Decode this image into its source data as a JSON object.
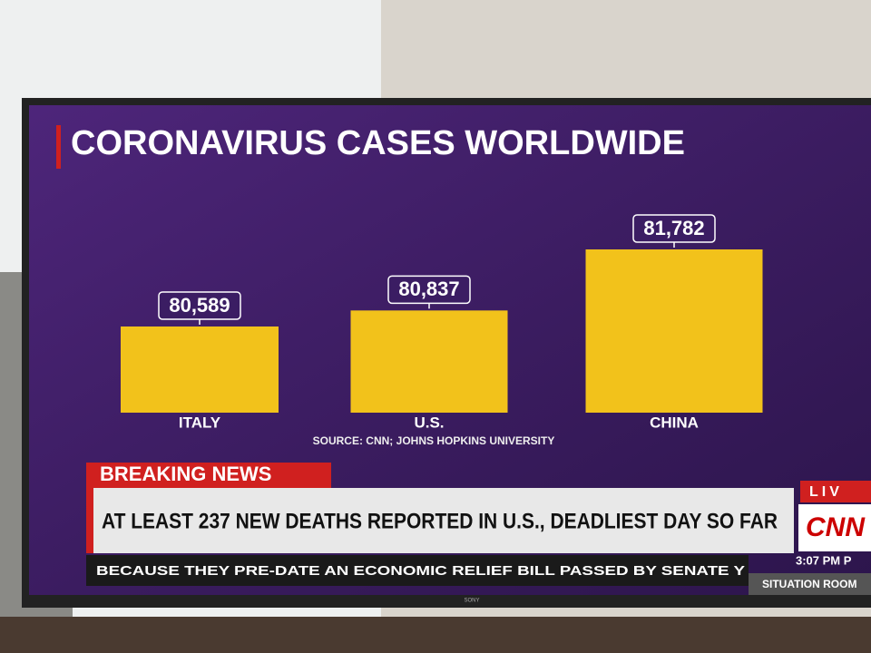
{
  "chart_data": {
    "type": "bar",
    "title": "CORONAVIRUS CASES WORLDWIDE",
    "categories": [
      "ITALY",
      "U.S.",
      "CHINA"
    ],
    "values": [
      80589,
      80837,
      81782
    ],
    "value_labels": [
      "80,589",
      "80,837",
      "81,782"
    ],
    "color": "#f2c21b",
    "source": "SOURCE: CNN; JOHNS HOPKINS UNIVERSITY"
  },
  "broadcast": {
    "banner": "BREAKING NEWS",
    "headline": "AT LEAST 237 NEW DEATHS REPORTED IN U.S., DEADLIEST DAY SO FAR",
    "ticker": "BECAUSE THEY PRE-DATE AN ECONOMIC RELIEF BILL PASSED BY SENATE Y",
    "live": "LIV",
    "network": "CNN",
    "time": "3:07 PM P",
    "show": "SITUATION ROOM",
    "brand": "SONY"
  }
}
